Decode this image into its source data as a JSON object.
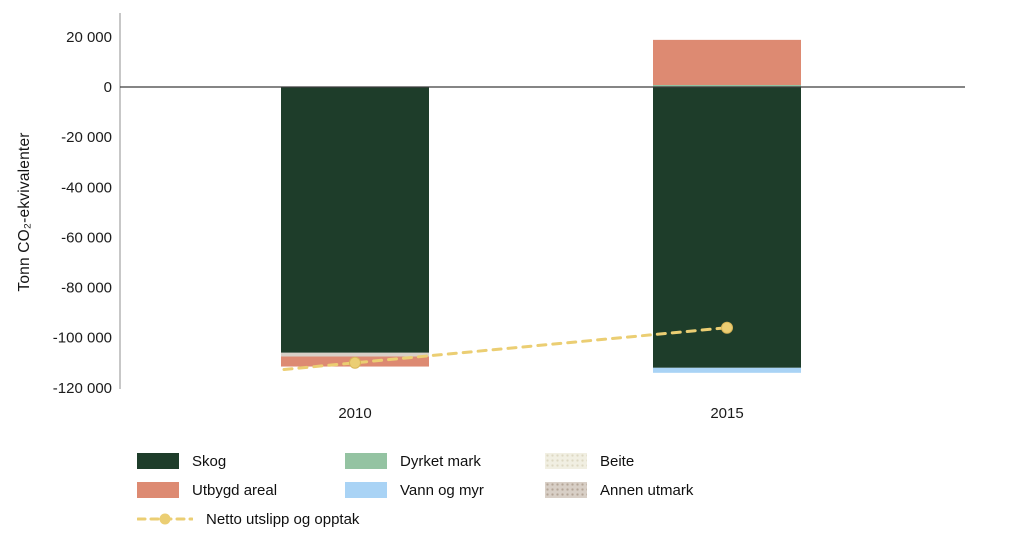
{
  "chart_data": {
    "type": "bar",
    "stacked": true,
    "title": "",
    "xlabel": "",
    "ylabel": "Tonn CO₂-ekvivalenter",
    "ylim": [
      -120000,
      20000
    ],
    "grid": false,
    "legend_position": "bottom",
    "categories": [
      "2010",
      "2015"
    ],
    "series": [
      {
        "name": "Skog",
        "color": "#1e3d2a",
        "values": [
          -106000,
          -112000
        ]
      },
      {
        "name": "Dyrket mark",
        "color": "#94c3a2",
        "values": [
          0,
          800
        ]
      },
      {
        "name": "Vann og myr",
        "color": "#a9d3f5",
        "values": [
          0,
          -2000
        ]
      },
      {
        "name": "Beite",
        "color": "#f1efe2",
        "values": [
          0,
          0
        ]
      },
      {
        "name": "Annen utmark",
        "color": "#d8cfc6",
        "values": [
          -1500,
          0
        ]
      },
      {
        "name": "Utbygd areal",
        "color": "#dd8a72",
        "values": [
          -4000,
          18000
        ]
      }
    ],
    "line_series": {
      "name": "Netto utslipp og opptak",
      "color": "#ebce73",
      "values": [
        -110000,
        -96000
      ]
    },
    "yticks": [
      {
        "v": 20000,
        "label": "20 000"
      },
      {
        "v": 0,
        "label": "0"
      },
      {
        "v": -20000,
        "label": "-20 000"
      },
      {
        "v": -40000,
        "label": "-40 000"
      },
      {
        "v": -60000,
        "label": "-60 000"
      },
      {
        "v": -80000,
        "label": "-80 000"
      },
      {
        "v": -100000,
        "label": "-100 000"
      },
      {
        "v": -120000,
        "label": "-120 000"
      }
    ]
  },
  "legend": {
    "items": [
      {
        "label": "Skog"
      },
      {
        "label": "Dyrket mark"
      },
      {
        "label": "Beite"
      },
      {
        "label": "Utbygd areal"
      },
      {
        "label": "Vann og myr"
      },
      {
        "label": "Annen utmark"
      },
      {
        "label": "Netto utslipp og opptak"
      }
    ]
  }
}
